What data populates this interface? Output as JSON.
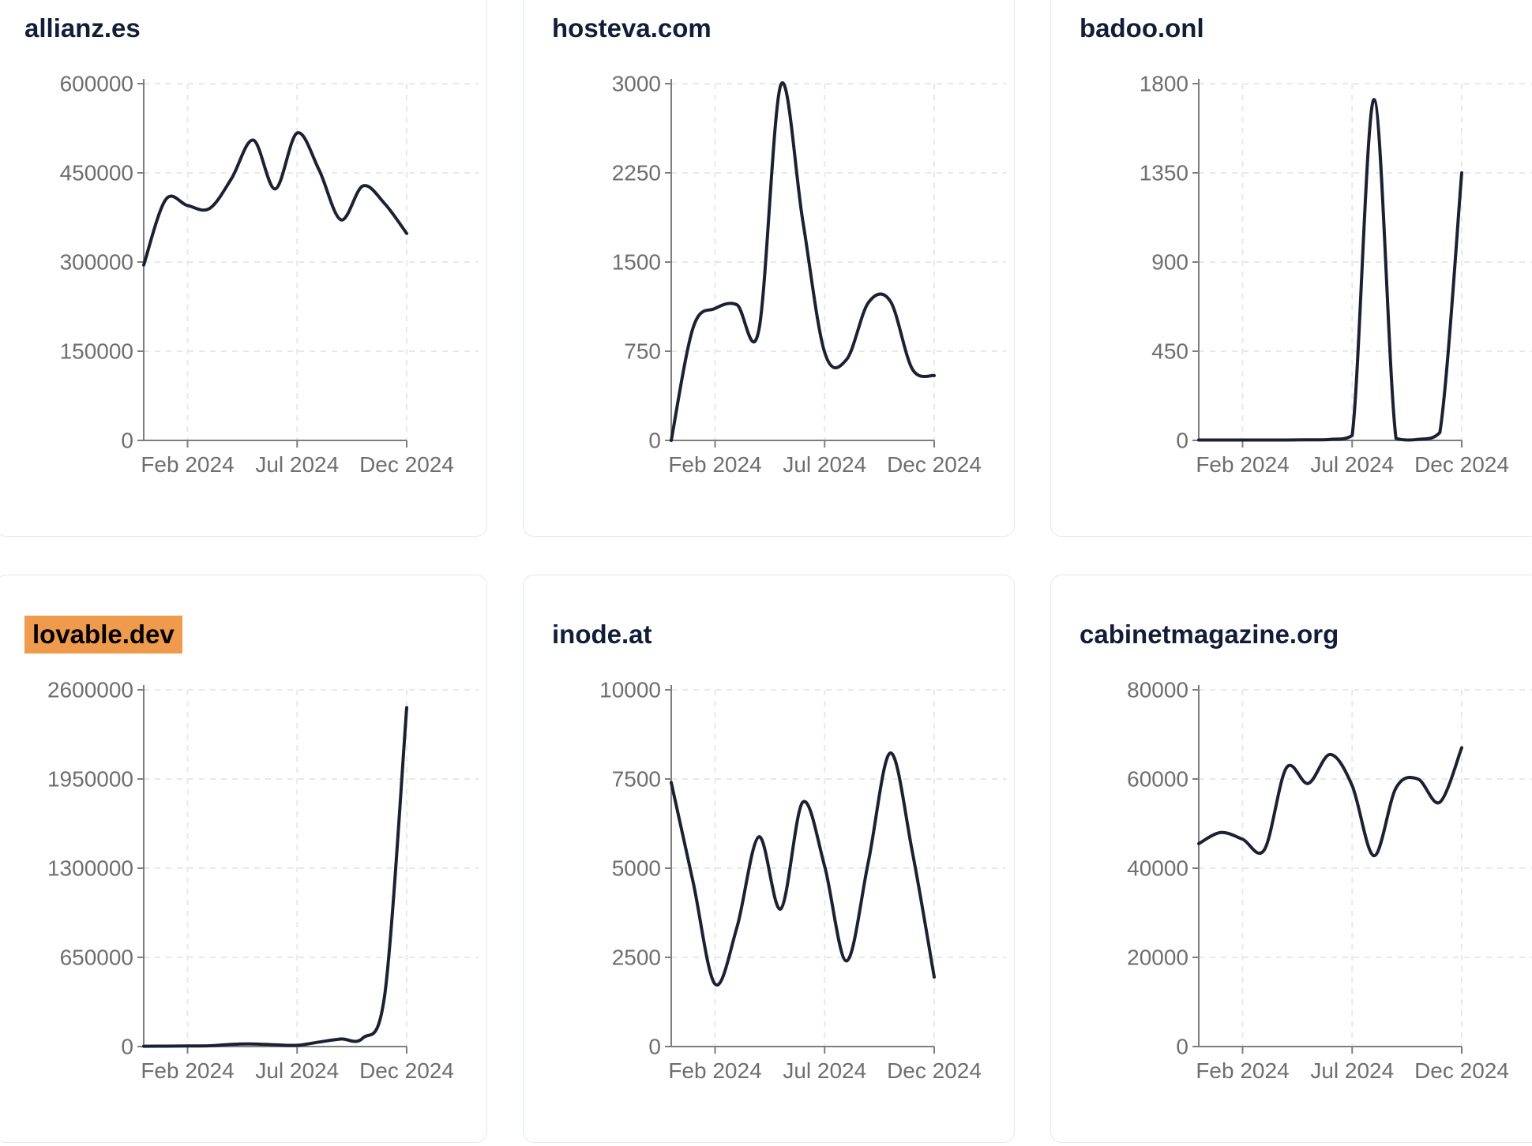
{
  "x_axis": {
    "months": [
      "Dec 2023",
      "Jan 2024",
      "Feb 2024",
      "Mar 2024",
      "Apr 2024",
      "May 2024",
      "Jun 2024",
      "Jul 2024",
      "Aug 2024",
      "Sep 2024",
      "Oct 2024",
      "Nov 2024",
      "Dec 2024"
    ],
    "tick_labels": [
      "Feb 2024",
      "Jul 2024",
      "Dec 2024"
    ],
    "tick_month_indexes": [
      2,
      7,
      12
    ]
  },
  "chart_data": [
    {
      "type": "line",
      "title": "allianz.es",
      "title_highlighted": false,
      "x": [
        "Dec 2023",
        "Jan 2024",
        "Feb 2024",
        "Mar 2024",
        "Apr 2024",
        "May 2024",
        "Jun 2024",
        "Jul 2024",
        "Aug 2024",
        "Sep 2024",
        "Oct 2024",
        "Nov 2024",
        "Dec 2024"
      ],
      "values": [
        295000,
        405000,
        395000,
        390000,
        440000,
        505000,
        423000,
        517000,
        455000,
        371000,
        428000,
        398000,
        348000
      ],
      "y_ticks": [
        0,
        150000,
        300000,
        450000,
        600000
      ],
      "ylim": [
        0,
        600000
      ],
      "x_tick_labels": [
        "Feb 2024",
        "Jul 2024",
        "Dec 2024"
      ],
      "grid": true,
      "legend": "none"
    },
    {
      "type": "line",
      "title": "hosteva.com",
      "title_highlighted": false,
      "x": [
        "Dec 2023",
        "Jan 2024",
        "Feb 2024",
        "Mar 2024",
        "Apr 2024",
        "May 2024",
        "Jun 2024",
        "Jul 2024",
        "Aug 2024",
        "Sep 2024",
        "Oct 2024",
        "Nov 2024",
        "Dec 2024"
      ],
      "values": [
        0,
        950,
        1110,
        1140,
        930,
        2990,
        1850,
        740,
        680,
        1160,
        1170,
        600,
        545
      ],
      "y_ticks": [
        0,
        750,
        1500,
        2250,
        3000
      ],
      "ylim": [
        0,
        3000
      ],
      "x_tick_labels": [
        "Feb 2024",
        "Jul 2024",
        "Dec 2024"
      ],
      "grid": true,
      "legend": "none"
    },
    {
      "type": "line",
      "title": "badoo.onl",
      "title_highlighted": false,
      "x": [
        "Dec 2023",
        "Jan 2024",
        "Feb 2024",
        "Mar 2024",
        "Apr 2024",
        "May 2024",
        "Jun 2024",
        "Jul 2024",
        "Aug 2024",
        "Sep 2024",
        "Oct 2024",
        "Nov 2024",
        "Dec 2024"
      ],
      "values": [
        2,
        2,
        2,
        2,
        2,
        3,
        5,
        25,
        1720,
        10,
        5,
        40,
        1350
      ],
      "y_ticks": [
        0,
        450,
        900,
        1350,
        1800
      ],
      "ylim": [
        0,
        1800
      ],
      "x_tick_labels": [
        "Feb 2024",
        "Jul 2024",
        "Dec 2024"
      ],
      "grid": true,
      "legend": "none"
    },
    {
      "type": "line",
      "title": "lovable.dev",
      "title_highlighted": true,
      "x": [
        "Dec 2023",
        "Jan 2024",
        "Feb 2024",
        "Mar 2024",
        "Apr 2024",
        "May 2024",
        "Jun 2024",
        "Jul 2024",
        "Aug 2024",
        "Sep 2024",
        "Oct 2024",
        "Nov 2024",
        "Dec 2024"
      ],
      "values": [
        2000,
        3000,
        4000,
        6000,
        16000,
        19000,
        13000,
        9000,
        33000,
        55000,
        62000,
        380000,
        2470000
      ],
      "y_ticks": [
        0,
        650000,
        1300000,
        1950000,
        2600000
      ],
      "ylim": [
        0,
        2600000
      ],
      "x_tick_labels": [
        "Feb 2024",
        "Jul 2024",
        "Dec 2024"
      ],
      "grid": true,
      "legend": "none"
    },
    {
      "type": "line",
      "title": "inode.at",
      "title_highlighted": false,
      "x": [
        "Dec 2023",
        "Jan 2024",
        "Feb 2024",
        "Mar 2024",
        "Apr 2024",
        "May 2024",
        "Jun 2024",
        "Jul 2024",
        "Aug 2024",
        "Sep 2024",
        "Oct 2024",
        "Nov 2024",
        "Dec 2024"
      ],
      "values": [
        7400,
        4600,
        1750,
        3350,
        5880,
        3860,
        6850,
        5050,
        2400,
        5200,
        8230,
        5460,
        1950
      ],
      "y_ticks": [
        0,
        2500,
        5000,
        7500,
        10000
      ],
      "ylim": [
        0,
        10000
      ],
      "x_tick_labels": [
        "Feb 2024",
        "Jul 2024",
        "Dec 2024"
      ],
      "grid": true,
      "legend": "none"
    },
    {
      "type": "line",
      "title": "cabinetmagazine.org",
      "title_highlighted": false,
      "x": [
        "Dec 2023",
        "Jan 2024",
        "Feb 2024",
        "Mar 2024",
        "Apr 2024",
        "May 2024",
        "Jun 2024",
        "Jul 2024",
        "Aug 2024",
        "Sep 2024",
        "Oct 2024",
        "Nov 2024",
        "Dec 2024"
      ],
      "values": [
        45500,
        48000,
        46500,
        44200,
        62500,
        59000,
        65500,
        58500,
        42800,
        58000,
        60000,
        54800,
        67000
      ],
      "y_ticks": [
        0,
        20000,
        40000,
        60000,
        80000
      ],
      "ylim": [
        0,
        80000
      ],
      "x_tick_labels": [
        "Feb 2024",
        "Jul 2024",
        "Dec 2024"
      ],
      "grid": true,
      "legend": "none"
    }
  ],
  "style": {
    "line_color": "#1b2033",
    "title_color": "#121d38",
    "axis_color": "#7e7e7e",
    "tick_label_color": "#6e6e6e",
    "grid_color": "#e8e8e8",
    "card_border_color": "#e2e8f0",
    "card_background": "#ffffff",
    "page_background": "#ffffff",
    "highlight_background": "#ef9b4d",
    "highlight_text_color": "#000000"
  }
}
